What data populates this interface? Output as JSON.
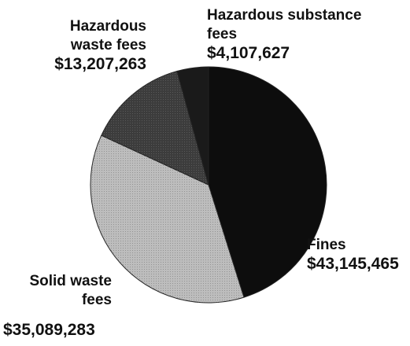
{
  "chart_data": {
    "type": "pie",
    "categories": [
      "Fines",
      "Solid waste fees",
      "Hazardous waste fees",
      "Hazardous substance fees"
    ],
    "values": [
      43145465,
      35089283,
      13207263,
      4107627
    ],
    "value_labels": [
      "$43,145,465",
      "$35,089,283",
      "$13,207,263",
      "$4,107,627"
    ],
    "colors": [
      "#0d0d0d",
      "#bdbdbd",
      "#3c3c3c",
      "#1a1a1a"
    ]
  }
}
